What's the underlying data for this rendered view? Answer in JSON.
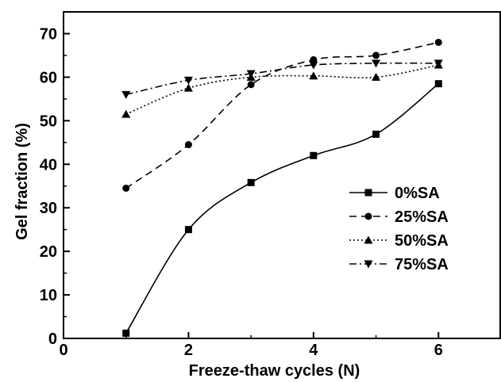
{
  "chart_data": {
    "type": "line",
    "xlabel": "Freeze-thaw cycles (N)",
    "ylabel": "Gel fraction (%)",
    "xlim": [
      0,
      7
    ],
    "ylim": [
      0,
      75
    ],
    "x_ticks": [
      0,
      2,
      4,
      6
    ],
    "y_ticks": [
      0,
      10,
      20,
      30,
      40,
      50,
      60,
      70
    ],
    "x_tick_labels": [
      "0",
      "2",
      "4",
      "6"
    ],
    "y_tick_labels": [
      "0",
      "10",
      "20",
      "30",
      "40",
      "50",
      "60",
      "70"
    ],
    "grid": false,
    "legend_position": "center-right",
    "x": [
      1,
      2,
      3,
      4,
      5,
      6
    ],
    "series": [
      {
        "name": "0%SA",
        "marker": "square",
        "line_style": "solid",
        "values": [
          1.2,
          25.0,
          35.8,
          42.0,
          46.9,
          58.5
        ]
      },
      {
        "name": "25%SA",
        "marker": "circle",
        "line_style": "dashed",
        "values": [
          34.5,
          44.5,
          58.3,
          64.0,
          65.0,
          68.0
        ]
      },
      {
        "name": "50%SA",
        "marker": "triangle-up",
        "line_style": "dotted",
        "values": [
          51.5,
          57.5,
          60.0,
          60.3,
          60.0,
          62.8
        ]
      },
      {
        "name": "75%SA",
        "marker": "triangle-down",
        "line_style": "dash-dot",
        "values": [
          56.0,
          59.3,
          60.8,
          62.8,
          63.2,
          63.2
        ]
      }
    ]
  }
}
